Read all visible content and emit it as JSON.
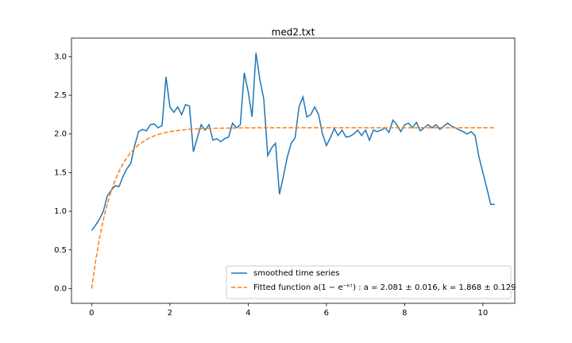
{
  "chart_data": {
    "type": "line",
    "title": "med2.txt",
    "series": [
      {
        "name": "smoothed time series",
        "color": "#1f77b4",
        "dashed": false,
        "x": [
          0,
          0.1,
          0.2,
          0.3,
          0.4,
          0.5,
          0.6,
          0.7,
          0.8,
          0.9,
          1.0,
          1.1,
          1.2,
          1.3,
          1.4,
          1.5,
          1.6,
          1.7,
          1.8,
          1.9,
          2.0,
          2.1,
          2.2,
          2.3,
          2.4,
          2.5,
          2.6,
          2.7,
          2.8,
          2.9,
          3.0,
          3.1,
          3.2,
          3.3,
          3.4,
          3.5,
          3.6,
          3.7,
          3.8,
          3.9,
          4.0,
          4.1,
          4.2,
          4.3,
          4.4,
          4.5,
          4.6,
          4.7,
          4.8,
          4.9,
          5.0,
          5.1,
          5.2,
          5.3,
          5.4,
          5.5,
          5.6,
          5.7,
          5.8,
          5.9,
          6.0,
          6.1,
          6.2,
          6.3,
          6.4,
          6.5,
          6.6,
          6.7,
          6.8,
          6.9,
          7.0,
          7.1,
          7.2,
          7.3,
          7.4,
          7.5,
          7.6,
          7.7,
          7.8,
          7.9,
          8.0,
          8.1,
          8.2,
          8.3,
          8.4,
          8.5,
          8.6,
          8.7,
          8.8,
          8.9,
          9.0,
          9.1,
          9.2,
          9.3,
          9.4,
          9.5,
          9.6,
          9.7,
          9.8,
          9.9,
          10.0,
          10.1,
          10.2,
          10.3
        ],
        "values": [
          0.75,
          0.82,
          0.9,
          1.0,
          1.2,
          1.27,
          1.33,
          1.32,
          1.45,
          1.55,
          1.62,
          1.85,
          2.03,
          2.06,
          2.04,
          2.12,
          2.13,
          2.08,
          2.11,
          2.74,
          2.35,
          2.28,
          2.35,
          2.25,
          2.38,
          2.36,
          1.77,
          1.95,
          2.12,
          2.05,
          2.12,
          1.92,
          1.94,
          1.9,
          1.94,
          1.96,
          2.14,
          2.08,
          2.12,
          2.79,
          2.55,
          2.22,
          3.05,
          2.7,
          2.45,
          1.72,
          1.82,
          1.88,
          1.22,
          1.45,
          1.7,
          1.88,
          1.95,
          2.35,
          2.48,
          2.22,
          2.25,
          2.35,
          2.25,
          2.0,
          1.85,
          1.95,
          2.07,
          1.98,
          2.05,
          1.96,
          1.97,
          2.0,
          2.05,
          1.98,
          2.05,
          1.92,
          2.05,
          2.03,
          2.05,
          2.08,
          2.02,
          2.18,
          2.12,
          2.03,
          2.12,
          2.14,
          2.08,
          2.15,
          2.04,
          2.08,
          2.12,
          2.08,
          2.12,
          2.06,
          2.1,
          2.14,
          2.1,
          2.08,
          2.05,
          2.03,
          2.0,
          2.03,
          1.98,
          1.7,
          1.5,
          1.3,
          1.09,
          1.09
        ]
      },
      {
        "name": "Fitted function a(1 − e⁻ᵏᵗ) : a = 2.081 ± 0.016, k = 1.868 ± 0.129",
        "color": "#ff7f0e",
        "dashed": true,
        "x": [
          0,
          0.1,
          0.2,
          0.3,
          0.4,
          0.5,
          0.6,
          0.7,
          0.8,
          0.9,
          1.0,
          1.2,
          1.4,
          1.6,
          1.8,
          2.0,
          2.5,
          3,
          4,
          5,
          6,
          7,
          8,
          9,
          10.3
        ],
        "values": [
          0,
          0.355,
          0.649,
          0.893,
          1.095,
          1.263,
          1.403,
          1.518,
          1.614,
          1.694,
          1.76,
          1.86,
          1.929,
          1.976,
          2.009,
          2.031,
          2.062,
          2.073,
          2.08,
          2.081,
          2.081,
          2.081,
          2.081,
          2.081,
          2.081
        ]
      }
    ],
    "xlim": [
      -0.515,
      10.815
    ],
    "ylim": [
      -0.19,
      3.24
    ],
    "xticks": [
      0,
      2,
      4,
      6,
      8,
      10
    ],
    "yticks": [
      {
        "value": 0,
        "label": "0.0"
      },
      0.5,
      {
        "value": 1,
        "label": "1.0"
      },
      1.5,
      {
        "value": 2,
        "label": "2.0"
      },
      2.5,
      {
        "value": 3,
        "label": "3.0"
      }
    ],
    "grid": false,
    "legend": "lower right"
  }
}
